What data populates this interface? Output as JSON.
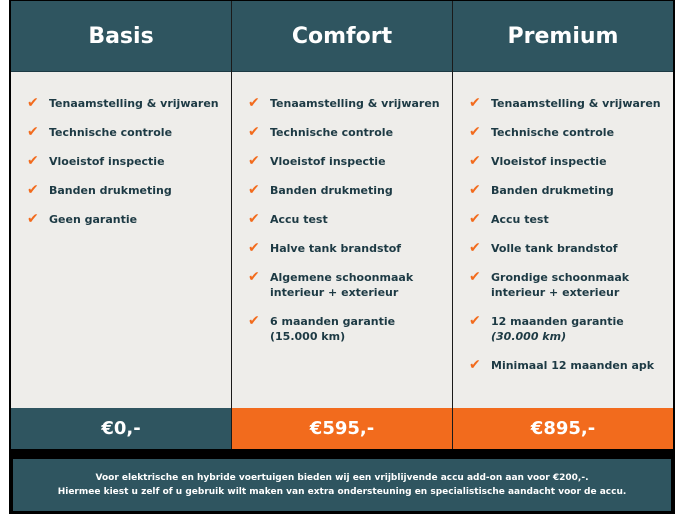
{
  "colors": {
    "header": "#2f5560",
    "accent": "#f26b1d",
    "body": "#eeedea",
    "text": "#1d3a44"
  },
  "plans": [
    {
      "name": "Basis",
      "price": "€0,-",
      "price_bg": "#2f5560",
      "items": [
        {
          "line1": "Tenaamstelling & vrijwaren"
        },
        {
          "line1": "Technische controle"
        },
        {
          "line1": "Vloeistof inspectie"
        },
        {
          "line1": "Banden drukmeting"
        },
        {
          "line1": "Geen garantie"
        }
      ]
    },
    {
      "name": "Comfort",
      "price": "€595,-",
      "price_bg": "#f26b1d",
      "items": [
        {
          "line1": "Tenaamstelling & vrijwaren"
        },
        {
          "line1": "Technische controle"
        },
        {
          "line1": "Vloeistof inspectie"
        },
        {
          "line1": "Banden drukmeting"
        },
        {
          "line1": "Accu test"
        },
        {
          "line1": "Halve tank brandstof"
        },
        {
          "line1": "Algemene schoonmaak",
          "line2": "interieur + exterieur"
        },
        {
          "line1": "6 maanden garantie",
          "line2": "(15.000 km)"
        }
      ]
    },
    {
      "name": "Premium",
      "price": "€895,-",
      "price_bg": "#f26b1d",
      "items": [
        {
          "line1": "Tenaamstelling & vrijwaren"
        },
        {
          "line1": "Technische controle"
        },
        {
          "line1": "Vloeistof inspectie"
        },
        {
          "line1": "Banden drukmeting"
        },
        {
          "line1": "Accu test"
        },
        {
          "line1": "Volle tank brandstof"
        },
        {
          "line1": "Grondige schoonmaak",
          "line2": "interieur + exterieur"
        },
        {
          "line1": "12 maanden garantie",
          "line2": "(30.000 km)",
          "line2_italic": true
        },
        {
          "line1": "Minimaal 12 maanden apk"
        }
      ]
    }
  ],
  "footer": {
    "line1": "Voor elektrische en hybride voertuigen bieden wij een vrijblijvende accu add-on aan voor €200,-.",
    "line2": "Hiermee kiest u zelf of u gebruik wilt maken van extra ondersteuning en specialistische aandacht voor de accu."
  }
}
